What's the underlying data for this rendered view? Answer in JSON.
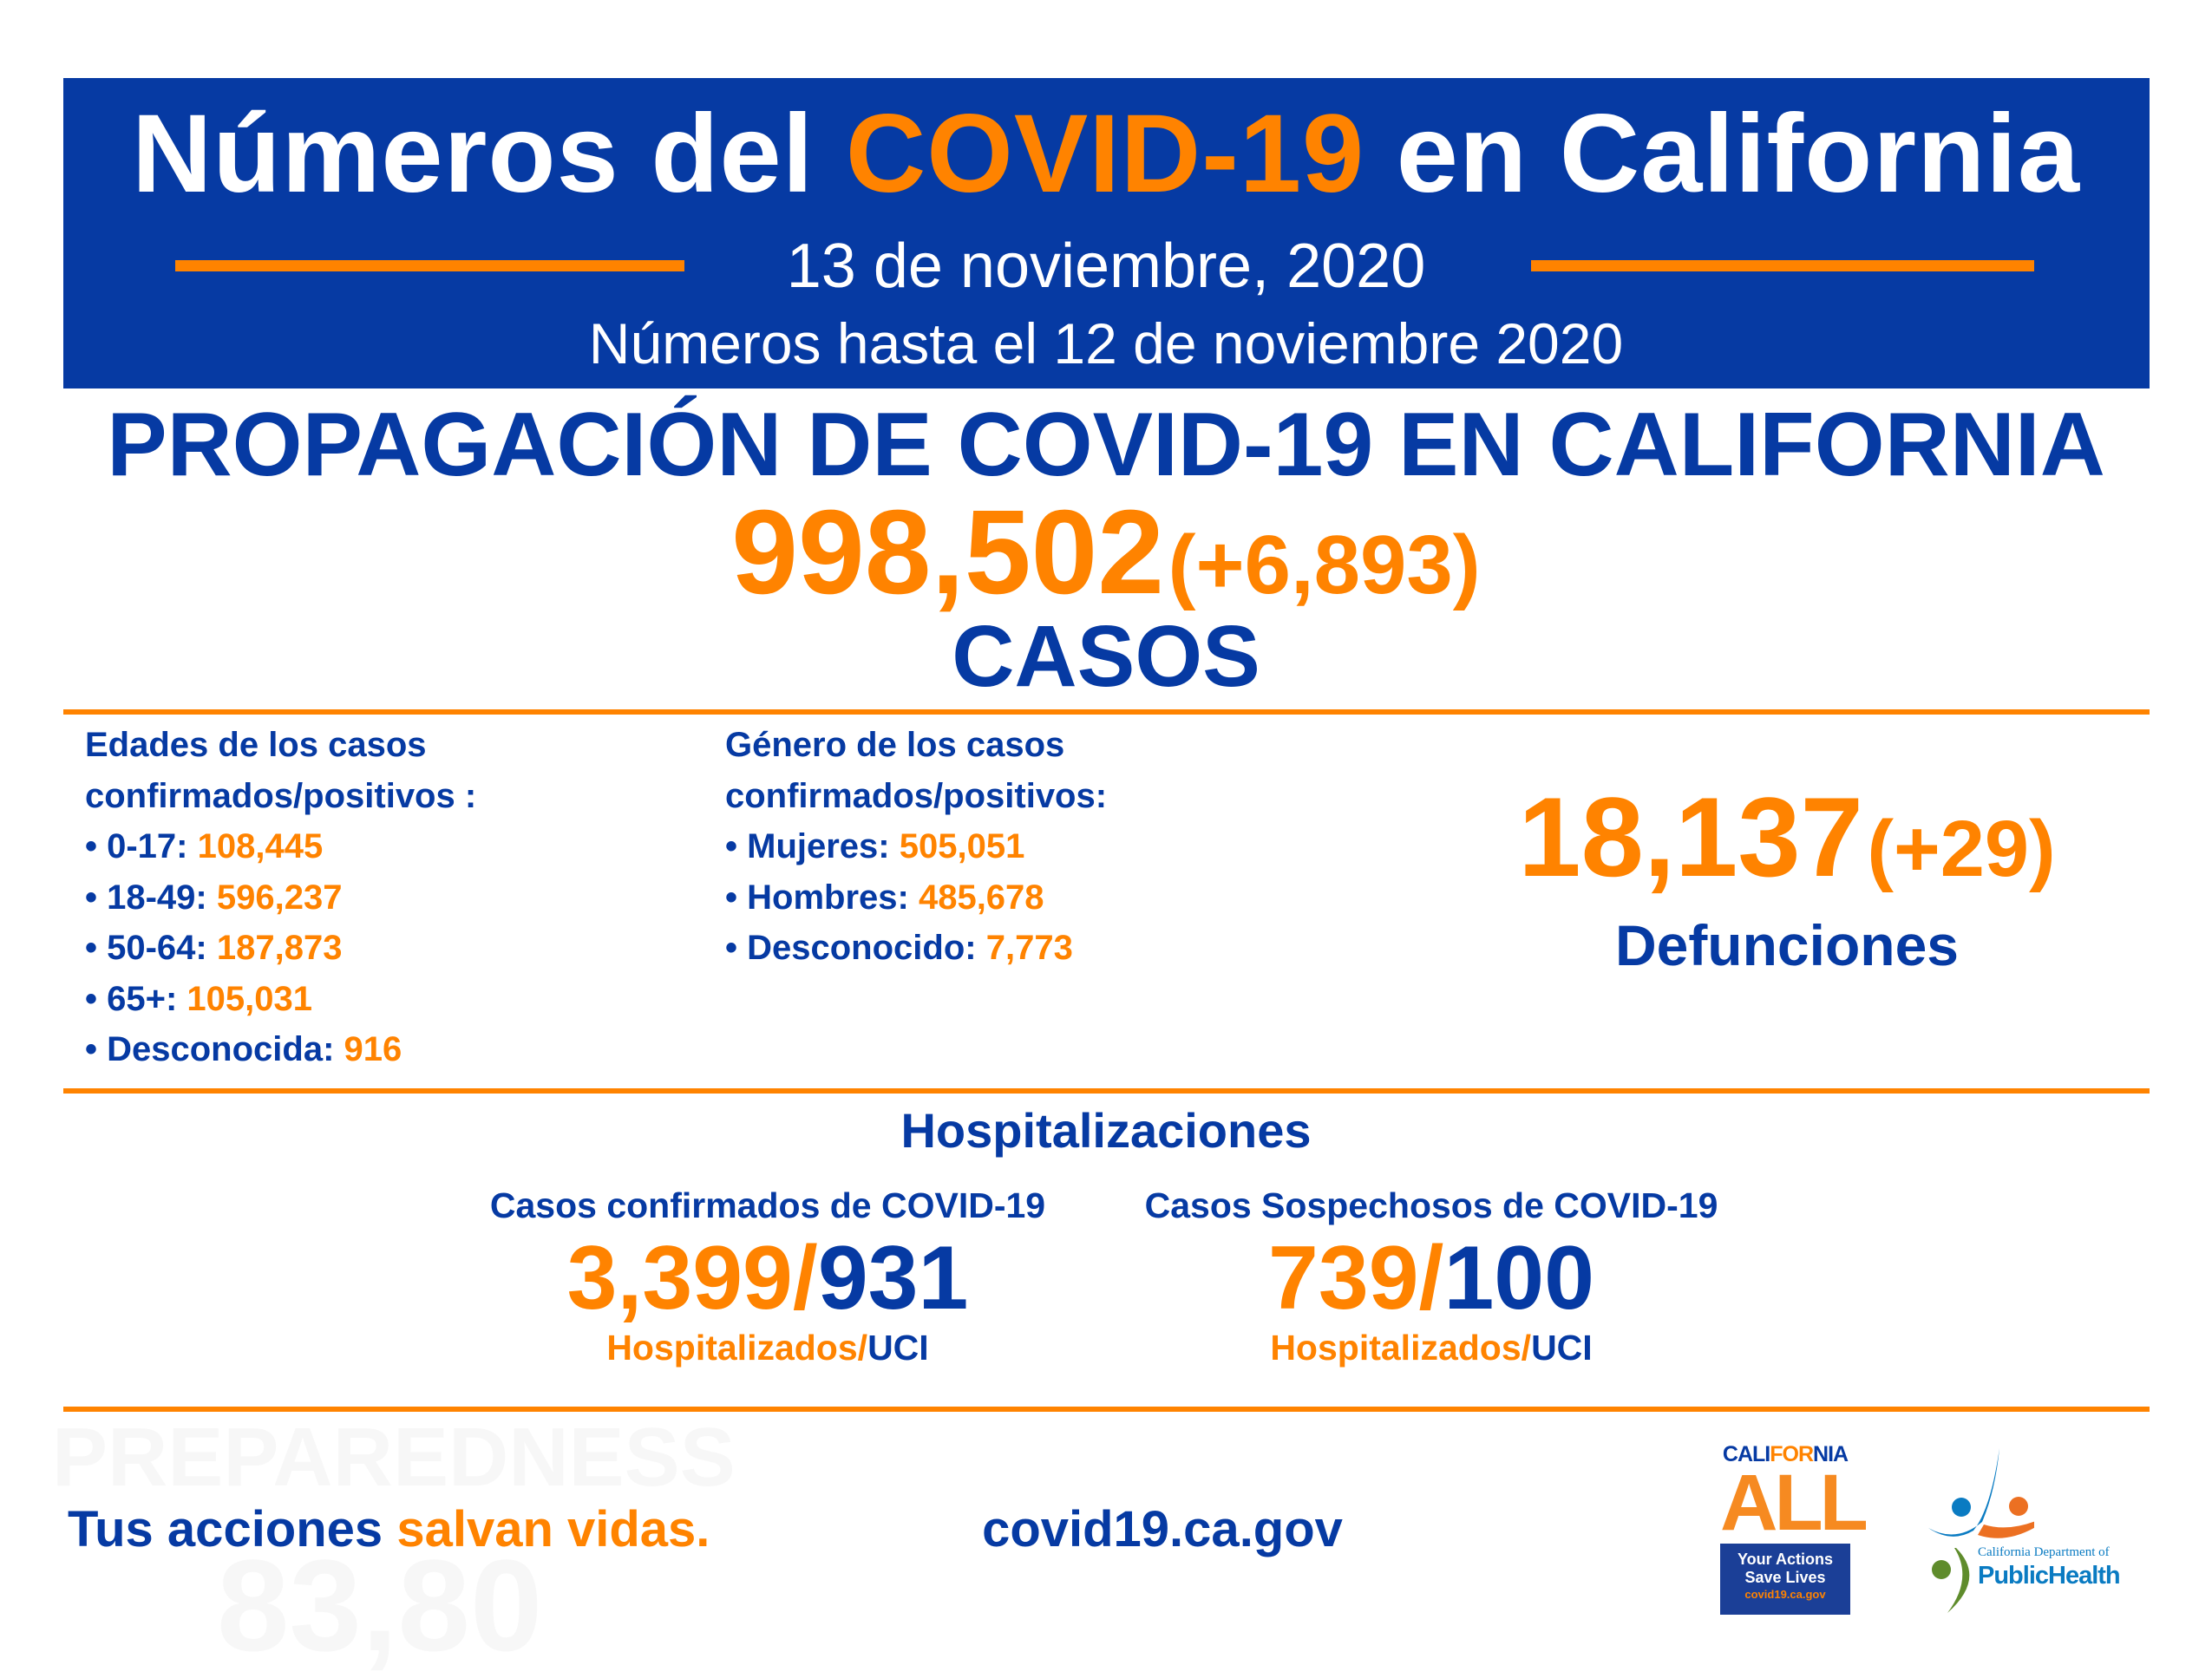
{
  "header": {
    "title_prefix": "Números del",
    "title_highlight": "COVID-19",
    "title_suffix": "en California",
    "date": "13 de noviembre, 2020",
    "data_through": "Números hasta el 12 de noviembre 2020"
  },
  "spread": {
    "heading": "PROPAGACIÓN DE COVID-19 EN CALIFORNIA",
    "total_cases": "998,502",
    "new_cases": "(+6,893)",
    "cases_label": "CASOS"
  },
  "ages": {
    "heading_line1": "Edades de los casos",
    "heading_line2": "confirmados/positivos :",
    "items": [
      {
        "label": "• 0-17:",
        "value": "108,445"
      },
      {
        "label": "• 18-49:",
        "value": "596,237"
      },
      {
        "label": "• 50-64:",
        "value": "187,873"
      },
      {
        "label": "• 65+:",
        "value": "105,031"
      },
      {
        "label": "• Desconocida:",
        "value": "916"
      }
    ]
  },
  "gender": {
    "heading_line1": "Género de los casos",
    "heading_line2": "confirmados/positivos:",
    "items": [
      {
        "label": "• Mujeres:",
        "value": "505,051"
      },
      {
        "label": "• Hombres:",
        "value": "485,678"
      },
      {
        "label": "• Desconocido:",
        "value": "7,773"
      }
    ]
  },
  "deaths": {
    "total": "18,137",
    "new": "(+29)",
    "label": "Defunciones"
  },
  "hospitalizations": {
    "heading": "Hospitalizaciones",
    "confirmed": {
      "heading": "Casos confirmados de COVID-19",
      "hospitalized": "3,399",
      "icu": "931",
      "label_hosp": "Hospitalizados",
      "label_icu": "UCI"
    },
    "suspected": {
      "heading": "Casos Sospechosos de COVID-19",
      "hospitalized": "739",
      "icu": "100",
      "label_hosp": "Hospitalizados",
      "label_icu": "UCI"
    }
  },
  "footer": {
    "slogan_blue": "Tus acciones",
    "slogan_orange": "salvan vidas.",
    "website": "covid19.ca.gov",
    "ghost_word": "PREPAREDNESS",
    "ghost_number": "83,80"
  },
  "logos": {
    "california_all": {
      "cali": "CALI",
      "for": "FOR",
      "nia": "NIA",
      "all": "ALL",
      "line1": "Your Actions",
      "line2": "Save Lives",
      "url": "covid19.ca.gov"
    },
    "cdph": {
      "line1": "California Department of",
      "line2": "PublicHealth"
    }
  },
  "colors": {
    "blue": "#063aa3",
    "orange": "#ff8300"
  }
}
